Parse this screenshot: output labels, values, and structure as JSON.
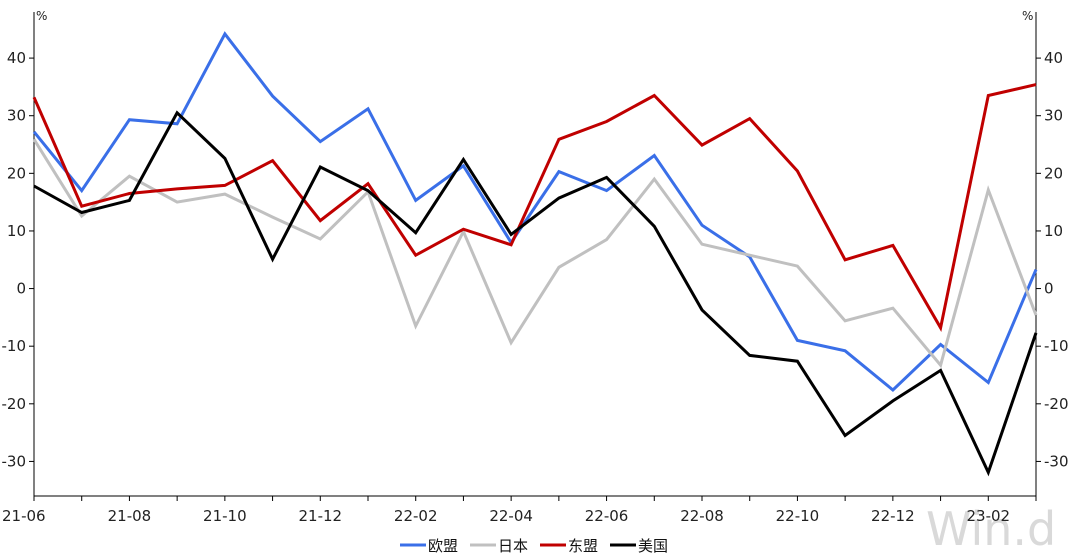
{
  "chart_data": {
    "type": "line",
    "x": [
      "21-06",
      "21-07",
      "21-08",
      "21-09",
      "21-10",
      "21-11",
      "21-12",
      "22-01",
      "22-02",
      "22-03",
      "22-04",
      "22-05",
      "22-06",
      "22-07",
      "22-08",
      "22-09",
      "22-10",
      "22-11",
      "22-12",
      "23-01",
      "23-02",
      "23-03"
    ],
    "x_tick_labels": [
      "21-06",
      "21-08",
      "21-10",
      "21-12",
      "22-02",
      "22-04",
      "22-06",
      "22-08",
      "22-10",
      "22-12",
      "23-02"
    ],
    "y_ticks": [
      40,
      30,
      20,
      10,
      0,
      -10,
      -20,
      -30
    ],
    "ylim": [
      -36,
      48
    ],
    "unit_left": "%",
    "unit_right": "%",
    "grid": false,
    "legend_position": "bottom",
    "watermark": "Win.d",
    "series": [
      {
        "name": "欧盟",
        "color": "#3a6fe8",
        "values": [
          27.2,
          17.0,
          29.3,
          28.6,
          44.2,
          33.4,
          25.5,
          31.2,
          15.3,
          21.3,
          8.0,
          20.3,
          17.0,
          23.1,
          11.0,
          5.5,
          -9.0,
          -10.8,
          -17.6,
          -9.7,
          -16.3,
          3.3
        ]
      },
      {
        "name": "日本",
        "color": "#c0c0c0",
        "values": [
          25.9,
          12.6,
          19.5,
          15.0,
          16.4,
          12.4,
          8.6,
          16.8,
          -6.5,
          9.9,
          -9.4,
          3.7,
          8.5,
          19.0,
          7.7,
          5.8,
          3.9,
          -5.6,
          -3.4,
          -13.3,
          17.1,
          -4.6
        ]
      },
      {
        "name": "东盟",
        "color": "#c00000",
        "values": [
          33.2,
          14.3,
          16.5,
          17.3,
          17.9,
          22.2,
          11.8,
          18.2,
          5.8,
          10.3,
          7.6,
          25.9,
          29.0,
          33.5,
          24.9,
          29.5,
          20.4,
          5.0,
          7.5,
          -6.8,
          33.5,
          35.4
        ]
      },
      {
        "name": "美国",
        "color": "#000000",
        "values": [
          17.8,
          13.2,
          15.3,
          30.5,
          22.6,
          5.1,
          21.1,
          17.0,
          9.7,
          22.4,
          9.4,
          15.7,
          19.3,
          10.8,
          -3.7,
          -11.6,
          -12.6,
          -25.5,
          -19.5,
          -14.2,
          -31.9,
          -7.7
        ]
      }
    ]
  }
}
